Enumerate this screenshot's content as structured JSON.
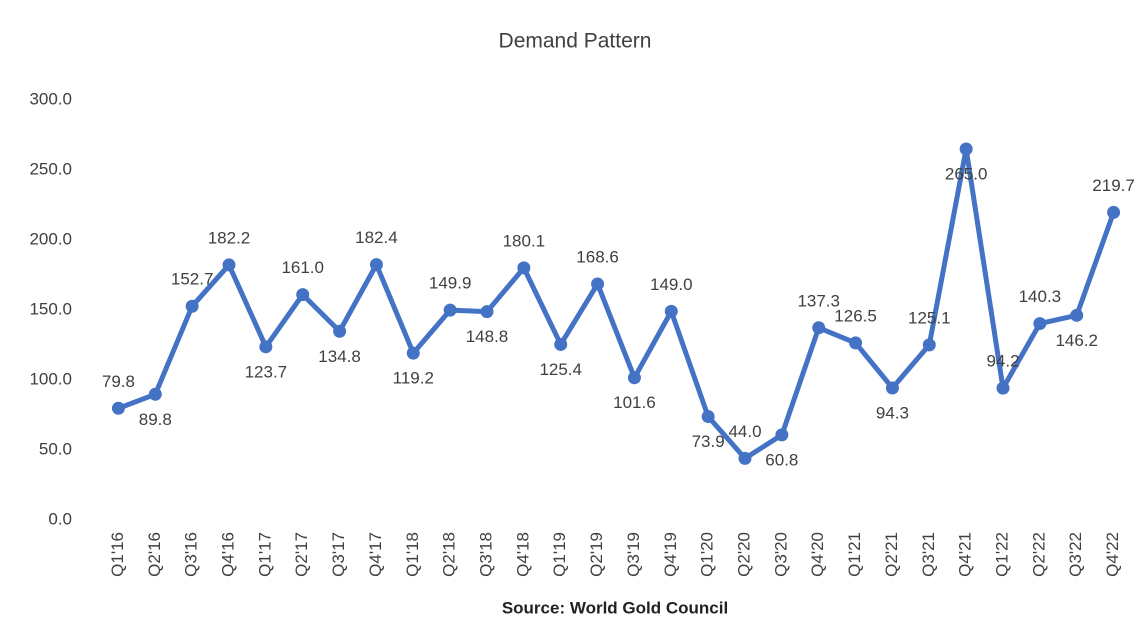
{
  "chart_data": {
    "type": "line",
    "title": "Demand Pattern",
    "source": "Source: World Gold Council",
    "categories": [
      "Q1'16",
      "Q2'16",
      "Q3'16",
      "Q4'16",
      "Q1'17",
      "Q2'17",
      "Q3'17",
      "Q4'17",
      "Q1'18",
      "Q2'18",
      "Q3'18",
      "Q4'18",
      "Q1'19",
      "Q2'19",
      "Q3'19",
      "Q4'19",
      "Q1'20",
      "Q2'20",
      "Q3'20",
      "Q4'20",
      "Q1'21",
      "Q2'21",
      "Q3'21",
      "Q4'21",
      "Q1'22",
      "Q2'22",
      "Q3'22",
      "Q4'22"
    ],
    "values": [
      79.8,
      89.8,
      152.7,
      182.2,
      123.7,
      161.0,
      134.8,
      182.4,
      119.2,
      149.9,
      148.8,
      180.1,
      125.4,
      168.6,
      101.6,
      149.0,
      73.9,
      44.0,
      60.8,
      137.3,
      126.5,
      94.3,
      125.1,
      265.0,
      94.2,
      140.3,
      146.2,
      219.7
    ],
    "value_labels": [
      "79.8",
      "89.8",
      "152.7",
      "182.2",
      "123.7",
      "161.0",
      "134.8",
      "182.4",
      "119.2",
      "149.9",
      "148.8",
      "180.1",
      "125.4",
      "168.6",
      "101.6",
      "149.0",
      "73.9",
      "44.0",
      "60.8",
      "137.3",
      "126.5",
      "94.3",
      "125.1",
      "265.0",
      "94.2",
      "140.3",
      "146.2",
      "219.7"
    ],
    "color": "#4472c4",
    "ylim": [
      0,
      300
    ],
    "yticks": [
      {
        "value": 0,
        "label": "0.0"
      },
      {
        "value": 50,
        "label": "50.0"
      },
      {
        "value": 100,
        "label": "100.0"
      },
      {
        "value": 150,
        "label": "150.0"
      },
      {
        "value": 200,
        "label": "200.0"
      },
      {
        "value": 250,
        "label": "250.0"
      },
      {
        "value": 300,
        "label": "300.0"
      }
    ],
    "grid": false
  }
}
